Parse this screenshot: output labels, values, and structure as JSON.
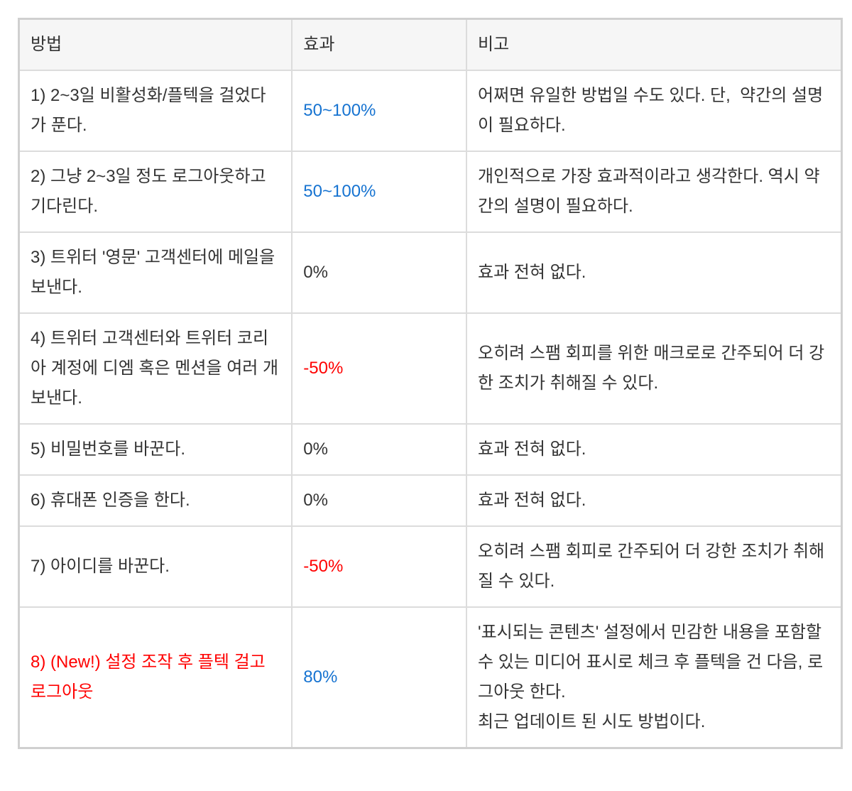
{
  "colors": {
    "default": "#333333",
    "blue": "#1673d1",
    "red": "#ff0000"
  },
  "table": {
    "columns": [
      {
        "label": "방법"
      },
      {
        "label": "효과"
      },
      {
        "label": "비고"
      }
    ],
    "rows": [
      {
        "method": "1) 2~3일 비활성화/플텍을 걸었다가 푼다.",
        "method_color": "default",
        "effect": "50~100%",
        "effect_color": "blue",
        "note": "어쩌면 유일한 방법일 수도 있다. 단,  약간의 설명이 필요하다.",
        "note_color": "default"
      },
      {
        "method": "2) 그냥 2~3일 정도 로그아웃하고 기다린다.",
        "method_color": "default",
        "effect": "50~100%",
        "effect_color": "blue",
        "note": "개인적으로 가장 효과적이라고 생각한다. 역시 약간의 설명이 필요하다.",
        "note_color": "default"
      },
      {
        "method": "3) 트위터 '영문' 고객센터에 메일을 보낸다.",
        "method_color": "default",
        "effect": "0%",
        "effect_color": "default",
        "note": "효과 전혀 없다.",
        "note_color": "default"
      },
      {
        "method": "4) 트위터 고객센터와 트위터 코리아 계정에 디엠 혹은 멘션을 여러 개 보낸다.",
        "method_color": "default",
        "effect": "-50%",
        "effect_color": "red",
        "note": "오히려 스팸 회피를 위한 매크로로 간주되어 더 강한 조치가 취해질 수 있다.",
        "note_color": "default"
      },
      {
        "method": "5) 비밀번호를 바꾼다.",
        "method_color": "default",
        "effect": "0%",
        "effect_color": "default",
        "note": "효과 전혀 없다.",
        "note_color": "default"
      },
      {
        "method": "6) 휴대폰 인증을 한다.",
        "method_color": "default",
        "effect": "0%",
        "effect_color": "default",
        "note": "효과 전혀 없다.",
        "note_color": "default"
      },
      {
        "method": "7) 아이디를 바꾼다.",
        "method_color": "default",
        "effect": "-50%",
        "effect_color": "red",
        "note": "오히려 스팸 회피로 간주되어 더 강한 조치가 취해질 수 있다.",
        "note_color": "default"
      },
      {
        "method": "8) (New!) 설정 조작 후 플텍 걸고 로그아웃",
        "method_color": "red",
        "effect": "80%",
        "effect_color": "blue",
        "note": "'표시되는 콘텐츠' 설정에서 민감한 내용을 포함할 수 있는 미디어 표시로 체크 후 플텍을 건 다음, 로그아웃 한다.\n최근 업데이트 된 시도 방법이다.",
        "note_color": "default"
      }
    ]
  }
}
